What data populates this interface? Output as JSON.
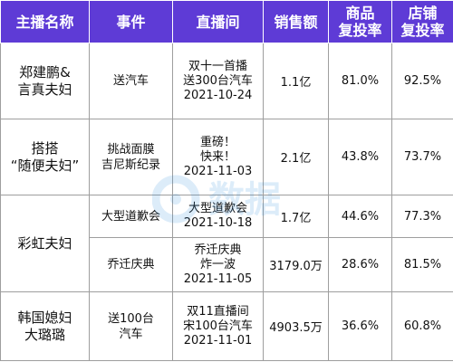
{
  "headers": {
    "streamer": "主播名称",
    "event": "事件",
    "live": "直播间",
    "sales": "销售额",
    "product_repurchase": [
      "商品",
      "复投率"
    ],
    "store_repurchase": [
      "店铺",
      "复投率"
    ]
  },
  "rows": [
    {
      "streamer": [
        "郑建鹏&",
        "言真夫妇"
      ],
      "event": [
        "送汽车"
      ],
      "live": [
        "双十一首播",
        "送300台汽车",
        "2021-10-24"
      ],
      "sales": "1.1亿",
      "product_repurchase": "81.0%",
      "store_repurchase": "92.5%"
    },
    {
      "streamer": [
        "搭搭",
        "“随便夫妇”"
      ],
      "event": [
        "挑战面膜",
        "吉尼斯纪录"
      ],
      "live": [
        "重磅！",
        "快来！",
        "2021-11-03"
      ],
      "sales": "2.1亿",
      "product_repurchase": "43.8%",
      "store_repurchase": "73.7%"
    },
    {
      "streamer": [
        "彩虹夫妇"
      ],
      "event": [
        "大型道歉会"
      ],
      "live": [
        "大型道歉会",
        "2021-10-18"
      ],
      "sales": "1.7亿",
      "product_repurchase": "44.6%",
      "store_repurchase": "77.3%"
    },
    {
      "event": [
        "乔迁庆典"
      ],
      "live": [
        "乔迁庆典",
        "炸一波",
        "2021-11-05"
      ],
      "sales": "3179.0万",
      "product_repurchase": "28.6%",
      "store_repurchase": "81.5%"
    },
    {
      "streamer": [
        "韩国媳妇",
        "大璐璐"
      ],
      "event": [
        "送100台",
        "汽车"
      ],
      "live": [
        "双11直播间",
        "宋100台汽车",
        "2021-11-01"
      ],
      "sales": "4903.5万",
      "product_repurchase": "36.6%",
      "store_repurchase": "60.8%"
    }
  ],
  "watermark": {
    "text": "数据"
  },
  "colors": {
    "header_bg": "#5e3bd6",
    "header_text": "#ffffff",
    "border": "#9e9e9e",
    "watermark": "#2f8fe0"
  }
}
